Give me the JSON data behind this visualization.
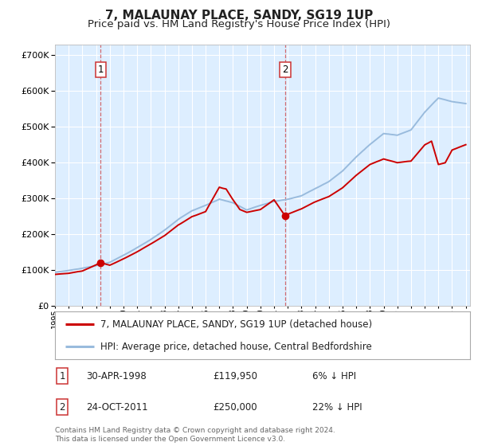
{
  "title": "7, MALAUNAY PLACE, SANDY, SG19 1UP",
  "subtitle": "Price paid vs. HM Land Registry's House Price Index (HPI)",
  "ytick_vals": [
    0,
    100000,
    200000,
    300000,
    400000,
    500000,
    600000,
    700000
  ],
  "ylim": [
    0,
    730000
  ],
  "xlim_start": 1995.0,
  "xlim_end": 2025.3,
  "sale1_x": 1998.33,
  "sale1_y": 119950,
  "sale1_label": "1",
  "sale2_x": 2011.81,
  "sale2_y": 250000,
  "sale2_label": "2",
  "red_line_color": "#cc0000",
  "blue_line_color": "#99bbdd",
  "dashed_line_color": "#cc3333",
  "dashed_line_alpha": 0.7,
  "legend_red_label": "7, MALAUNAY PLACE, SANDY, SG19 1UP (detached house)",
  "legend_blue_label": "HPI: Average price, detached house, Central Bedfordshire",
  "annotation1_date": "30-APR-1998",
  "annotation1_price": "£119,950",
  "annotation1_hpi": "6% ↓ HPI",
  "annotation2_date": "24-OCT-2011",
  "annotation2_price": "£250,000",
  "annotation2_hpi": "22% ↓ HPI",
  "footer": "Contains HM Land Registry data © Crown copyright and database right 2024.\nThis data is licensed under the Open Government Licence v3.0.",
  "bg_color": "#ffffff",
  "plot_bg_color": "#ddeeff",
  "grid_color": "#ffffff",
  "title_fontsize": 11,
  "subtitle_fontsize": 9.5,
  "hpi_knots": [
    1995,
    1996,
    1997,
    1998,
    1999,
    2000,
    2001,
    2002,
    2003,
    2004,
    2005,
    2006,
    2007,
    2008,
    2009,
    2010,
    2011,
    2012,
    2013,
    2014,
    2015,
    2016,
    2017,
    2018,
    2019,
    2020,
    2021,
    2022,
    2023,
    2024,
    2025
  ],
  "hpi_vals": [
    93000,
    97000,
    103000,
    110000,
    120000,
    140000,
    162000,
    185000,
    210000,
    240000,
    263000,
    278000,
    295000,
    285000,
    265000,
    278000,
    290000,
    295000,
    305000,
    325000,
    345000,
    375000,
    415000,
    450000,
    480000,
    475000,
    490000,
    540000,
    580000,
    570000,
    565000
  ],
  "red_knots": [
    1995,
    1996,
    1997,
    1998.33,
    1999,
    2000,
    2001,
    2002,
    2003,
    2004,
    2005,
    2006,
    2007,
    2007.5,
    2008,
    2008.5,
    2009,
    2010,
    2011,
    2011.81,
    2012,
    2013,
    2014,
    2015,
    2016,
    2017,
    2018,
    2019,
    2020,
    2021,
    2022,
    2022.5,
    2023,
    2023.5,
    2024,
    2025
  ],
  "red_vals": [
    87000,
    90000,
    97000,
    119950,
    113000,
    130000,
    150000,
    172000,
    195000,
    225000,
    248000,
    262000,
    330000,
    325000,
    295000,
    268000,
    260000,
    268000,
    295000,
    250000,
    255000,
    270000,
    290000,
    305000,
    330000,
    365000,
    395000,
    410000,
    400000,
    405000,
    450000,
    460000,
    395000,
    400000,
    435000,
    450000
  ]
}
